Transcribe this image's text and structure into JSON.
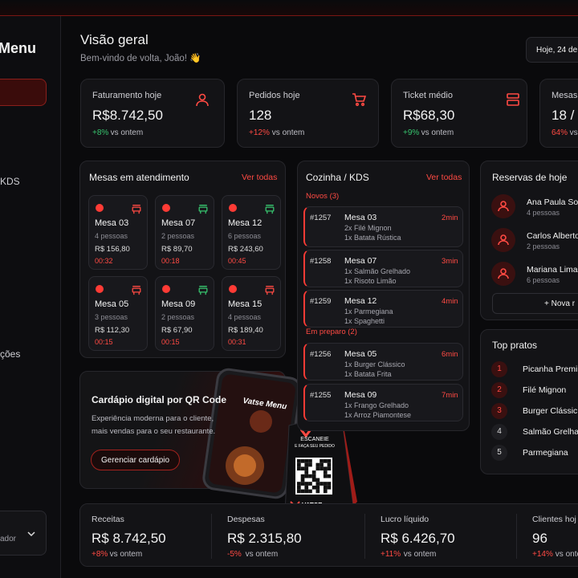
{
  "sidebar": {
    "brand": "Menu",
    "items": [
      "KDS",
      "ções"
    ],
    "user": "ador"
  },
  "header": {
    "title": "Visão geral",
    "subtitle": "Bem-vindo de volta, João! 👋",
    "date": "Hoje, 24 de"
  },
  "kpis": [
    {
      "label": "Faturamento hoje",
      "value": "R$8.742,50",
      "change": "+8%",
      "compare": "vs ontem",
      "change_color": "#37c46e"
    },
    {
      "label": "Pedidos hoje",
      "value": "128",
      "change": "+12%",
      "compare": "vs ontem",
      "change_color": "#ff4a43"
    },
    {
      "label": "Ticket médio",
      "value": "R$68,30",
      "change": "+9%",
      "compare": "vs ontem",
      "change_color": "#37c46e"
    },
    {
      "label": "Mesas",
      "value": "18 /",
      "change": "64%",
      "compare": "vs",
      "change_color": "#ff4a43"
    }
  ],
  "tables": {
    "title": "Mesas em atendimento",
    "link": "Ver todas",
    "items": [
      {
        "name": "Mesa 03",
        "people": "4 pessoas",
        "amount": "R$ 156,80",
        "time": "00:32",
        "icon_color": "#ff4a43"
      },
      {
        "name": "Mesa 07",
        "people": "2 pessoas",
        "amount": "R$ 89,70",
        "time": "00:18",
        "icon_color": "#37c46e"
      },
      {
        "name": "Mesa 12",
        "people": "6 pessoas",
        "amount": "R$ 243,60",
        "time": "00:45",
        "icon_color": "#37c46e"
      },
      {
        "name": "Mesa 05",
        "people": "3 pessoas",
        "amount": "R$ 112,30",
        "time": "00:15",
        "icon_color": "#ff4a43"
      },
      {
        "name": "Mesa 09",
        "people": "2 pessoas",
        "amount": "R$ 67,90",
        "time": "00:15",
        "icon_color": "#37c46e"
      },
      {
        "name": "Mesa 15",
        "people": "4 pessoas",
        "amount": "R$ 189,40",
        "time": "00:31",
        "icon_color": "#ff4a43"
      }
    ]
  },
  "kitchen": {
    "title": "Cozinha / KDS",
    "link": "Ver todas",
    "groups": [
      {
        "label": "Novos (3)",
        "orders": [
          {
            "id": "#1257",
            "table": "Mesa 03",
            "time": "2min",
            "items": [
              "2x Filé Mignon",
              "1x Batata Rústica"
            ]
          },
          {
            "id": "#1258",
            "table": "Mesa 07",
            "time": "3min",
            "items": [
              "1x Salmão Grelhado",
              "1x Risoto Limão"
            ]
          },
          {
            "id": "#1259",
            "table": "Mesa 12",
            "time": "4min",
            "items": [
              "1x Parmegiana",
              "1x Spaghetti"
            ]
          }
        ]
      },
      {
        "label": "Em preparo (2)",
        "orders": [
          {
            "id": "#1256",
            "table": "Mesa 05",
            "time": "6min",
            "items": [
              "1x Burger Clássico",
              "1x Batata Frita"
            ]
          },
          {
            "id": "#1255",
            "table": "Mesa 09",
            "time": "7min",
            "items": [
              "1x Frango Grelhado",
              "1x Arroz Piamontese"
            ]
          }
        ]
      }
    ]
  },
  "reservations": {
    "title": "Reservas de hoje",
    "items": [
      {
        "name": "Ana Paula Sou",
        "people": "4 pessoas"
      },
      {
        "name": "Carlos Alberto",
        "people": "2 pessoas"
      },
      {
        "name": "Mariana Lima",
        "people": "6 pessoas"
      }
    ],
    "button": "+ Nova r"
  },
  "top_dishes": {
    "title": "Top pratos",
    "items": [
      {
        "rank": 1,
        "name": "Picanha Premi"
      },
      {
        "rank": 2,
        "name": "Filé Mignon"
      },
      {
        "rank": 3,
        "name": "Burger Clássic"
      },
      {
        "rank": 4,
        "name": "Salmão Grelha"
      },
      {
        "rank": 5,
        "name": "Parmegiana"
      }
    ]
  },
  "promo": {
    "title": "Cardápio digital por QR Code",
    "description": [
      "Experiência moderna para o cliente,",
      "mais vendas para o seu restaurante."
    ],
    "button": "Gerenciar cardápio",
    "phone_title": "Vatse Menu",
    "stand_text": [
      "ESCANEIE",
      "E FAÇA SEU PEDIDO"
    ],
    "stand_brand": "VATSE"
  },
  "summary": [
    {
      "label": "Receitas",
      "value": "R$ 8.742,50",
      "change": "+8%",
      "compare": "vs ontem"
    },
    {
      "label": "Despesas",
      "value": "R$ 2.315,80",
      "change": "-5%",
      "compare": "vs ontem"
    },
    {
      "label": "Lucro líquido",
      "value": "R$ 6.426,70",
      "change": "+11%",
      "compare": "vs ontem"
    },
    {
      "label": "Clientes hoj",
      "value": "96",
      "change": "+14%",
      "compare": "vs ontem"
    }
  ]
}
